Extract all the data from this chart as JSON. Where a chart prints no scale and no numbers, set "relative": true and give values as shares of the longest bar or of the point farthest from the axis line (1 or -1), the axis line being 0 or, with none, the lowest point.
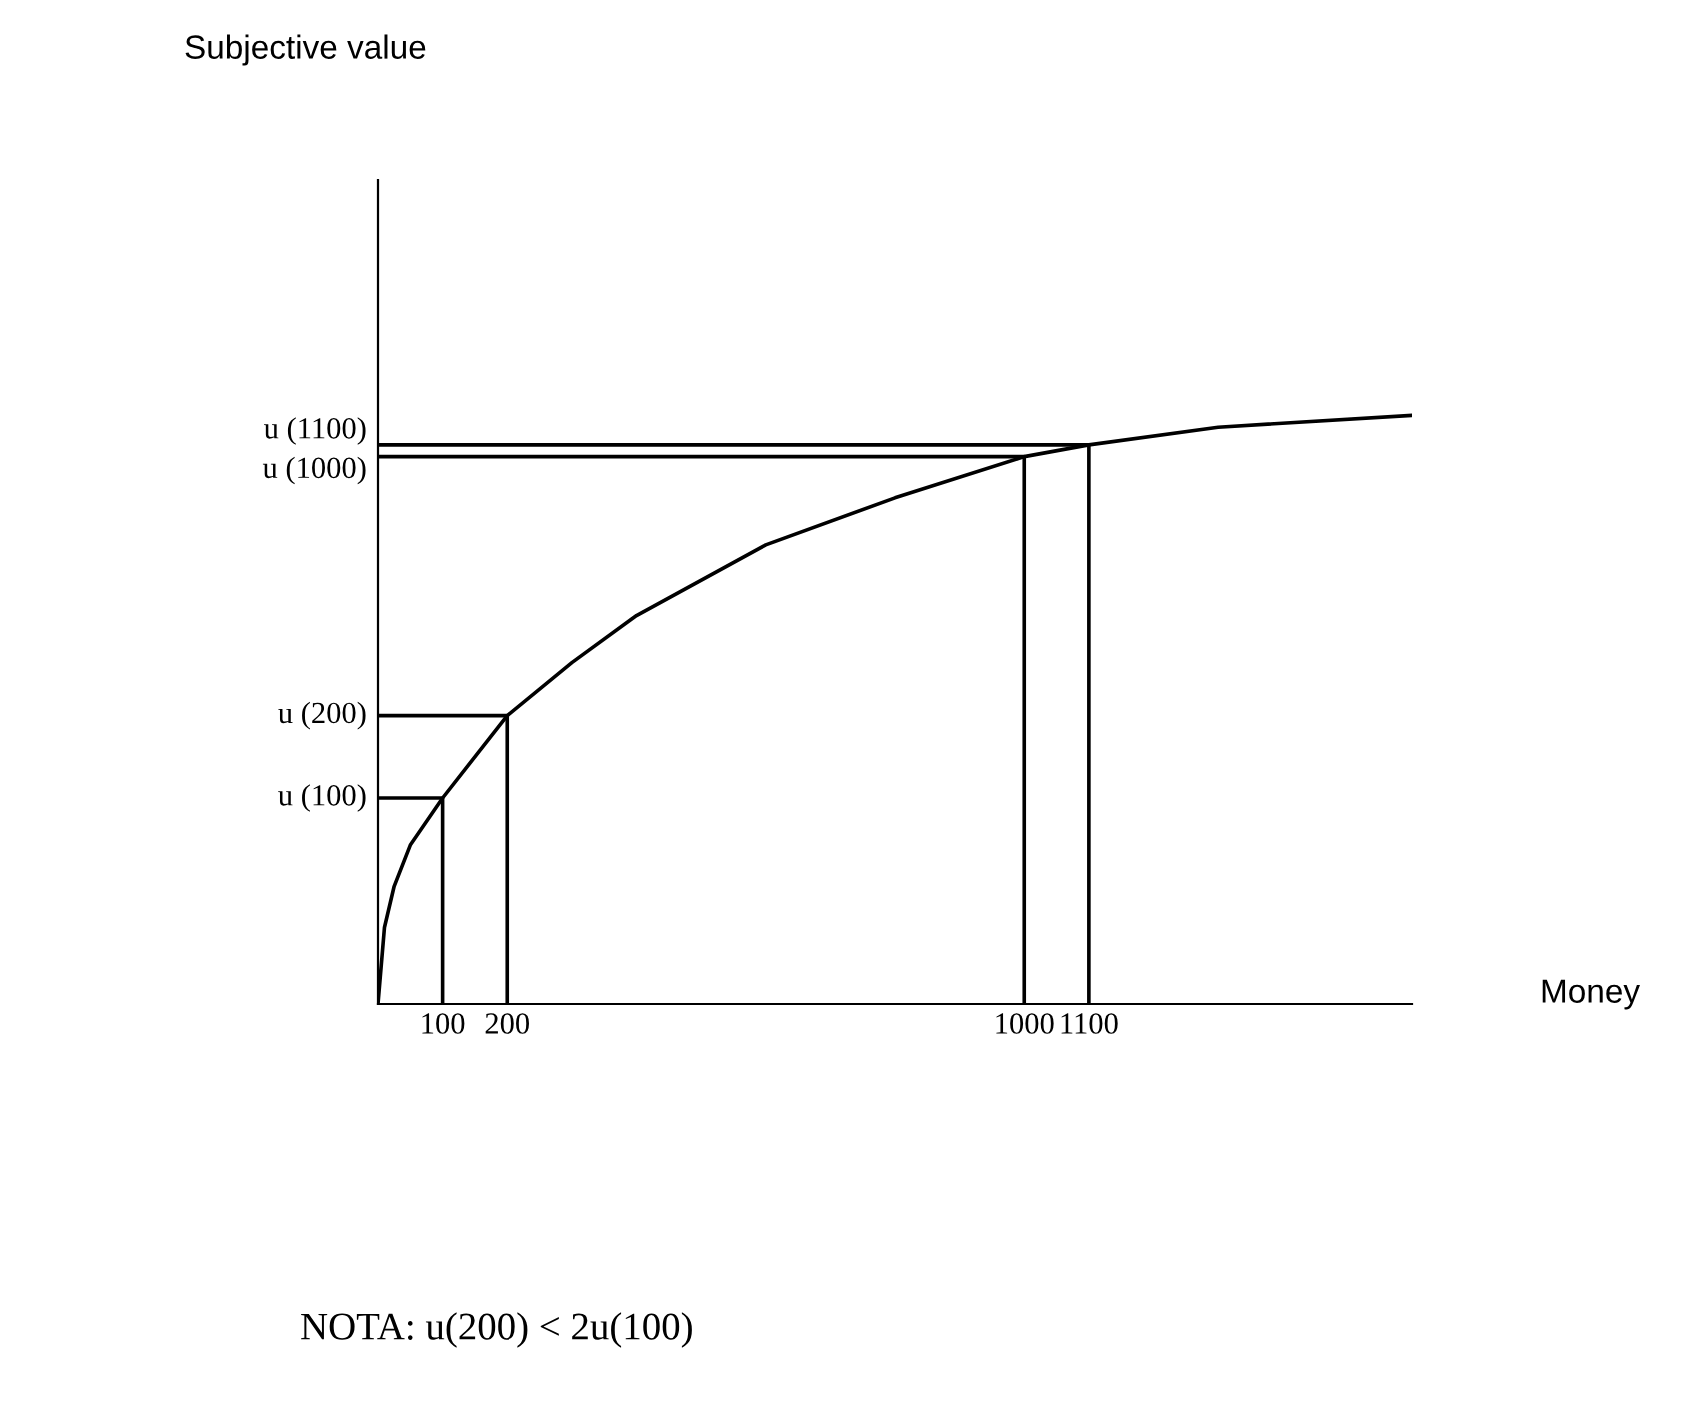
{
  "chart_data": {
    "type": "line",
    "relative": true,
    "xlabel": "Money",
    "xlim": [
      0,
      1600
    ],
    "xticks": [
      100,
      200,
      1000,
      1100
    ],
    "series": [
      {
        "color": "#000000",
        "x": [
          0,
          10,
          25,
          50,
          100,
          200,
          300,
          400,
          600,
          800,
          1000,
          1100,
          1300,
          1600
        ],
        "values": [
          0,
          0.13,
          0.2,
          0.27,
          0.35,
          0.49,
          0.58,
          0.66,
          0.78,
          0.86,
          0.93,
          0.95,
          0.98,
          1
        ]
      },
      {
        "name": "u (100)",
        "color": "#000000",
        "x": [
          0,
          100,
          100
        ],
        "values": [
          0.35,
          0.35,
          0
        ]
      },
      {
        "name": "u (200)",
        "color": "#000000",
        "x": [
          0,
          200,
          200
        ],
        "values": [
          0.49,
          0.49,
          0
        ]
      },
      {
        "name": "u (1000)",
        "color": "#000000",
        "x": [
          0,
          1000,
          1000
        ],
        "values": [
          0.93,
          0.93,
          0
        ]
      },
      {
        "name": "u (1100)",
        "color": "#000000",
        "x": [
          0,
          1100,
          1100
        ],
        "values": [
          0.95,
          0.95,
          0
        ]
      }
    ],
    "annotations": [
      "Subjective value",
      "NOTA: u(200) < 2u(100)"
    ],
    "grid": false,
    "legend": false,
    "marker": "none",
    "line_style": "solid"
  }
}
